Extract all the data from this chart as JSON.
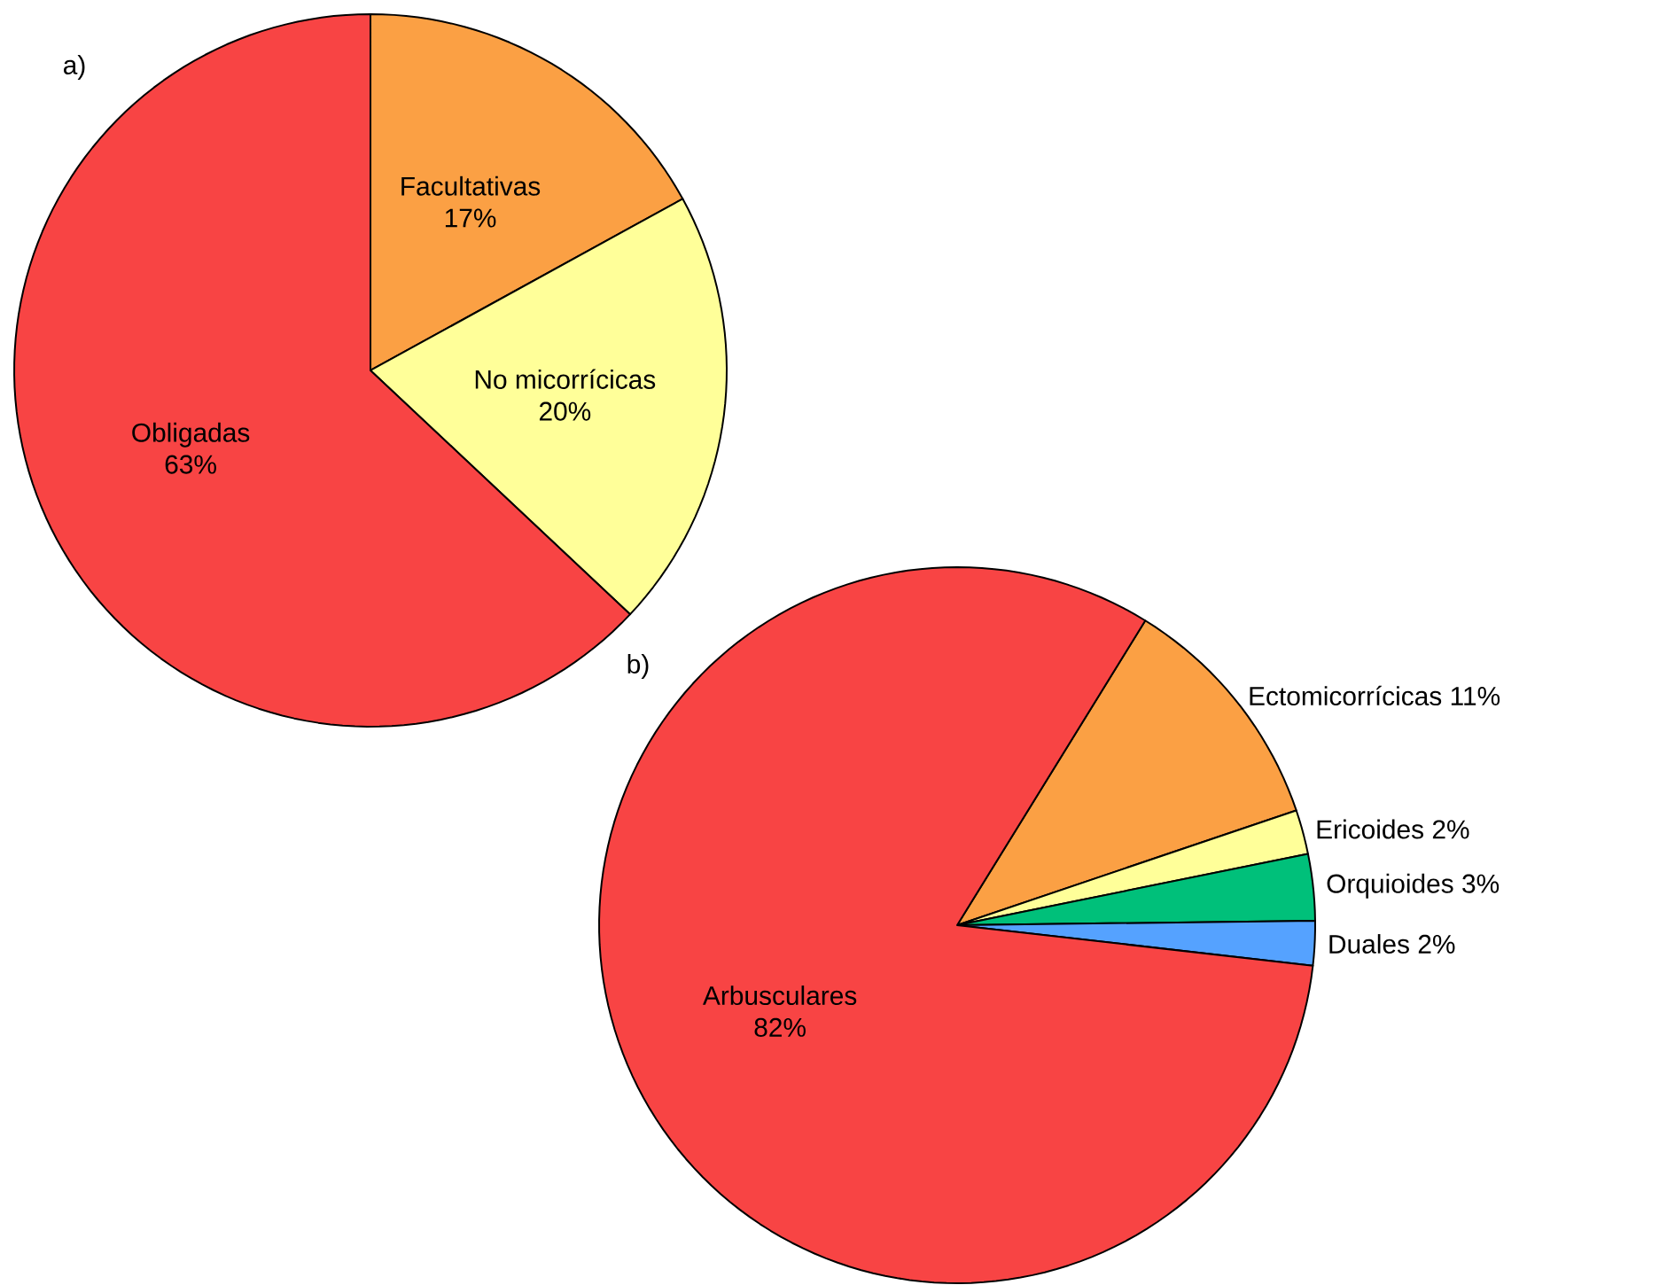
{
  "chart_data": [
    {
      "type": "pie",
      "title": "a)",
      "categories": [
        "Facultativas",
        "No micorrícicas",
        "Obligadas"
      ],
      "values": [
        17,
        20,
        63
      ],
      "colors": [
        "#fba044",
        "#ffff99",
        "#f84444"
      ],
      "value_labels": [
        "17%",
        "20%",
        "63%"
      ]
    },
    {
      "type": "pie",
      "title": "b)",
      "categories": [
        "Ectomicorrícicas",
        "Ericoides",
        "Orquioides",
        "Duales",
        "Arbusculares"
      ],
      "values": [
        11,
        2,
        3,
        2,
        82
      ],
      "colors": [
        "#fba044",
        "#ffff99",
        "#00c07a",
        "#55a2ff",
        "#f84444"
      ],
      "value_labels": [
        "11%",
        "2%",
        "3%",
        "2%",
        "82%"
      ]
    }
  ]
}
